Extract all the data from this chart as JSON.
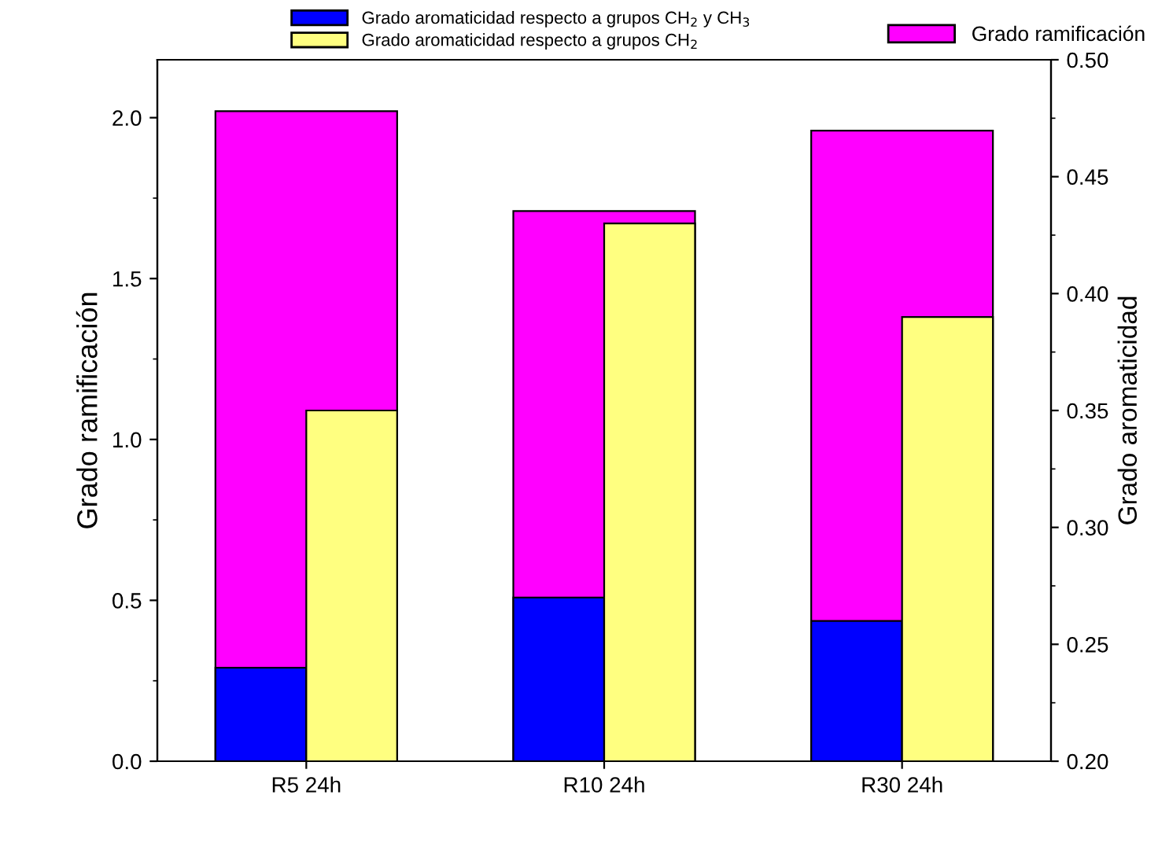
{
  "chart_data": {
    "type": "bar",
    "ylabel": "Grado ramificación",
    "y2label": "Grado aromaticidad",
    "categories": [
      "R5 24h",
      "R10 24h",
      "R30 24h"
    ],
    "series": [
      {
        "name": "Grado ramificación",
        "color": "#ff00ff",
        "values": [
          2.02,
          1.71,
          1.96
        ]
      },
      {
        "name": "Grado aromaticidad respecto a grupos CH$_{2}$ y CH$_{3}$",
        "color": "#0000ff",
        "values": [
          0.24,
          0.27,
          0.26
        ],
        "axis": "y2"
      },
      {
        "name": "Grado aromaticidad respecto a grupos CH$_{2}$",
        "color": "#ffff80",
        "values": [
          0.35,
          0.43,
          0.39
        ],
        "axis": "y2"
      }
    ],
    "ylim": [
      0,
      2.18
    ],
    "yticks": [
      {
        "value": 0,
        "label": "0.0"
      },
      {
        "value": 0.5,
        "label": "0.5"
      },
      {
        "value": 1,
        "label": "1.0"
      },
      {
        "value": 1.5,
        "label": "1.5"
      },
      {
        "value": 2,
        "label": "2.0"
      }
    ],
    "y2lim": [
      0.2,
      0.5
    ],
    "y2ticks": [
      {
        "value": 0.2,
        "label": "0.20"
      },
      {
        "value": 0.25,
        "label": "0.25"
      },
      {
        "value": 0.3,
        "label": "0.30"
      },
      {
        "value": 0.35,
        "label": "0.35"
      },
      {
        "value": 0.4,
        "label": "0.40"
      },
      {
        "value": 0.45,
        "label": "0.45"
      },
      {
        "value": 0.5,
        "label": "0.50"
      }
    ],
    "grid": false,
    "legend": "top"
  }
}
